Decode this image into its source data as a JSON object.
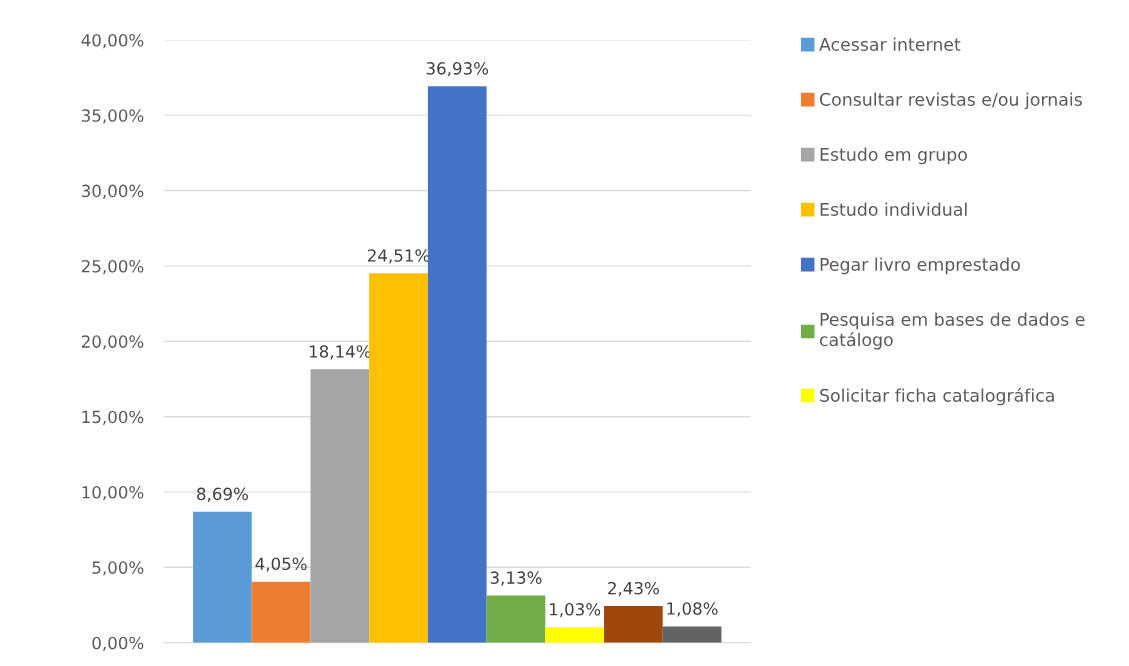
{
  "chart_data": {
    "type": "bar",
    "categories": [
      null
    ],
    "series": [
      {
        "name": "Acessar internet",
        "color": "#5b9bd5",
        "values": [
          8.69
        ],
        "value_labels": [
          "8,69%"
        ]
      },
      {
        "name": "Consultar revistas e/ou jornais",
        "color": "#ed7d31",
        "values": [
          4.05
        ],
        "value_labels": [
          "4,05%"
        ]
      },
      {
        "name": "Estudo em grupo",
        "color": "#a5a5a5",
        "values": [
          18.14
        ],
        "value_labels": [
          "18,14%"
        ]
      },
      {
        "name": "Estudo individual",
        "color": "#ffc000",
        "values": [
          24.51
        ],
        "value_labels": [
          "24,51%"
        ]
      },
      {
        "name": "Pegar livro emprestado",
        "color": "#4472c4",
        "values": [
          36.93
        ],
        "value_labels": [
          "36,93%"
        ]
      },
      {
        "name": "Pesquisa em bases de dados e catálogo",
        "color": "#70ad47",
        "values": [
          3.13
        ],
        "value_labels": [
          "3,13%"
        ]
      },
      {
        "name": "Solicitar ficha catalográfica",
        "color": "#ffff00",
        "values": [
          1.03
        ],
        "value_labels": [
          "1,03%"
        ]
      },
      {
        "color": "#9e480e",
        "values": [
          2.43
        ],
        "value_labels": [
          "2,43%"
        ]
      },
      {
        "color": "#636363",
        "values": [
          1.08
        ],
        "value_labels": [
          "1,08%"
        ]
      }
    ],
    "ylim": [
      0,
      40
    ],
    "yticks": [
      {
        "value": 0,
        "label": "0,00%"
      },
      {
        "value": 5,
        "label": "5,00%"
      },
      {
        "value": 10,
        "label": "10,00%"
      },
      {
        "value": 15,
        "label": "15,00%"
      },
      {
        "value": 20,
        "label": "20,00%"
      },
      {
        "value": 25,
        "label": "25,00%"
      },
      {
        "value": 30,
        "label": "30,00%"
      },
      {
        "value": 35,
        "label": "35,00%"
      },
      {
        "value": 40,
        "label": "40,00%"
      }
    ],
    "grid": "y",
    "legend": "right"
  }
}
